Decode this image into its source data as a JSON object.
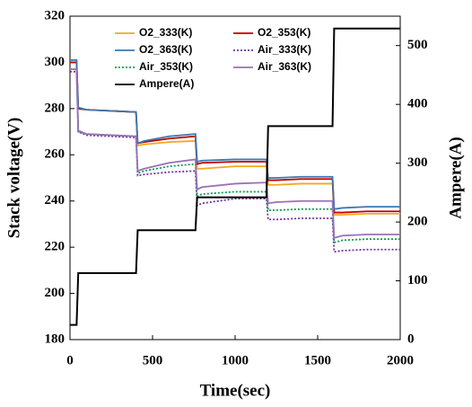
{
  "chart_data": {
    "type": "line",
    "xlabel": "Time(sec)",
    "ylabel": "Stack voltage(V)",
    "y2label": "Ampere(A)",
    "x": [
      0,
      40,
      50,
      100,
      400,
      410,
      450,
      600,
      760,
      770,
      800,
      1000,
      1190,
      1200,
      1250,
      1400,
      1590,
      1600,
      1650,
      1800,
      2000
    ],
    "xlim": [
      0,
      2000
    ],
    "xticks": [
      0,
      500,
      1000,
      1500,
      2000
    ],
    "ylim": [
      180,
      320
    ],
    "yticks": [
      180,
      200,
      220,
      240,
      260,
      280,
      300,
      320
    ],
    "y2lim": [
      0,
      550
    ],
    "y2ticks": [
      0,
      100,
      200,
      300,
      400,
      500
    ],
    "series": [
      {
        "name": "O2_333(K)",
        "color": "#f2a81d",
        "values": [
          300,
          300,
          280,
          279.5,
          278.5,
          264,
          264.5,
          265.5,
          266,
          254,
          254,
          255,
          255,
          247,
          247,
          247.5,
          247.5,
          234,
          234,
          234.5,
          234.5
        ]
      },
      {
        "name": "O2_353(K)",
        "color": "#c00000",
        "values": [
          300,
          300,
          280,
          279.5,
          278.5,
          265,
          265.5,
          267,
          268,
          256,
          256.5,
          257,
          257,
          249,
          249,
          249.5,
          249.5,
          235,
          235,
          235.5,
          235.5
        ]
      },
      {
        "name": "O2_363(K)",
        "color": "#3a78b0",
        "values": [
          301,
          301,
          280.5,
          279.5,
          278.5,
          265,
          266,
          268,
          269,
          257,
          257.5,
          258,
          258,
          250,
          250,
          250.5,
          250.5,
          236.5,
          237,
          237.5,
          237.5
        ]
      },
      {
        "name": "Air_333(K)",
        "color": "#7030a0",
        "dash": "dotted",
        "values": [
          296,
          296,
          270,
          268.5,
          267.5,
          251,
          251.5,
          252.5,
          253,
          238,
          239,
          241,
          241,
          232,
          232,
          232.5,
          232.5,
          218,
          218.5,
          219,
          219
        ]
      },
      {
        "name": "Air_353(K)",
        "color": "#00a050",
        "dash": "dotted",
        "values": [
          297,
          297,
          270,
          269,
          268,
          252,
          253,
          255,
          256,
          242,
          243,
          244,
          244,
          236,
          236,
          236.5,
          236.5,
          222,
          223,
          223.5,
          223.5
        ]
      },
      {
        "name": "Air_363(K)",
        "color": "#9a70b8",
        "values": [
          297,
          297,
          270.5,
          269,
          268,
          253,
          254,
          256.5,
          258,
          245,
          246,
          247.5,
          248,
          239,
          239.5,
          240,
          240,
          224,
          225,
          225.5,
          225.5
        ]
      },
      {
        "name": "Ampere(A)",
        "color": "#000000",
        "axis": "y2",
        "values": [
          25,
          25,
          113,
          113,
          113,
          186,
          186,
          186,
          186,
          242,
          242,
          242,
          242,
          363,
          363,
          363,
          363,
          529,
          529,
          529,
          529
        ]
      }
    ]
  }
}
